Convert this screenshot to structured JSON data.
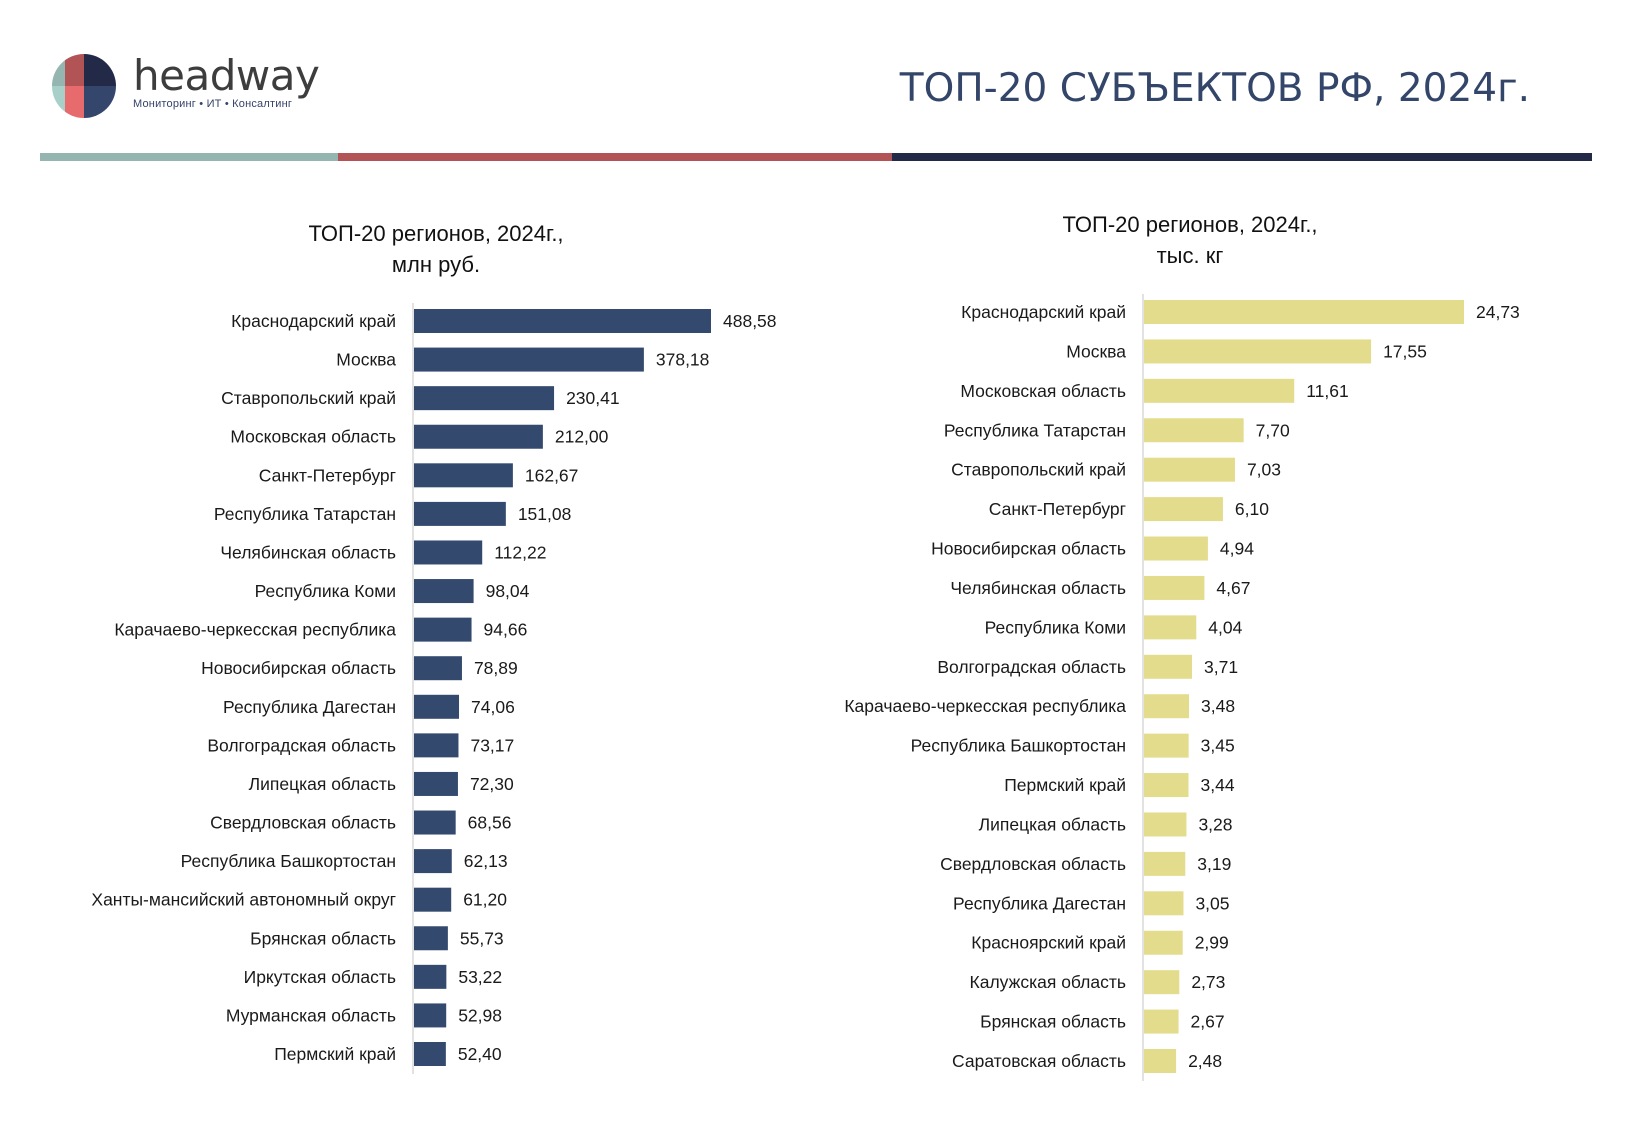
{
  "brand": {
    "name": "headway",
    "tagline": "Мониторинг • ИТ • Консалтинг",
    "logo_colors": [
      "#94b5b0",
      "#b25456",
      "#222a48",
      "#a8d0c9",
      "#e76a6d",
      "#34466c"
    ]
  },
  "page_title": "ТОП-20 СУБЪЕКТОВ РФ, 2024г.",
  "stripe_colors": [
    "#94b5b0",
    "#b25456",
    "#222a48"
  ],
  "chart_data": [
    {
      "type": "bar",
      "orientation": "horizontal",
      "title_line1": "ТОП-20 регионов, 2024г.,",
      "title_line2": "млн руб.",
      "unit": "млн руб.",
      "color": "#34496e",
      "categories": [
        "Краснодарский край",
        "Москва",
        "Ставропольский край",
        "Московская область",
        "Санкт-Петербург",
        "Республика Татарстан",
        "Челябинская область",
        "Республика Коми",
        "Карачаево-черкесская республика",
        "Новосибирская область",
        "Республика Дагестан",
        "Волгоградская область",
        "Липецкая область",
        "Свердловская область",
        "Республика Башкортостан",
        "Ханты-мансийский автономный округ",
        "Брянская область",
        "Иркутская область",
        "Мурманская область",
        "Пермский край"
      ],
      "values": [
        488.58,
        378.18,
        230.41,
        212.0,
        162.67,
        151.08,
        112.22,
        98.04,
        94.66,
        78.89,
        74.06,
        73.17,
        72.3,
        68.56,
        62.13,
        61.2,
        55.73,
        53.22,
        52.98,
        52.4
      ],
      "labels": [
        "488,58",
        "378,18",
        "230,41",
        "212,00",
        "162,67",
        "151,08",
        "112,22",
        "98,04",
        "94,66",
        "78,89",
        "74,06",
        "73,17",
        "72,30",
        "68,56",
        "62,13",
        "61,20",
        "55,73",
        "53,22",
        "52,98",
        "52,40"
      ],
      "grid": false,
      "legend": "none"
    },
    {
      "type": "bar",
      "orientation": "horizontal",
      "title_line1": "ТОП-20 регионов, 2024г.,",
      "title_line2": "тыс. кг",
      "unit": "тыс. кг",
      "color": "#e3dc8c",
      "categories": [
        "Краснодарский край",
        "Москва",
        "Московская область",
        "Республика Татарстан",
        "Ставропольский край",
        "Санкт-Петербург",
        "Новосибирская область",
        "Челябинская область",
        "Республика Коми",
        "Волгоградская область",
        "Карачаево-черкесская республика",
        "Республика Башкортостан",
        "Пермский край",
        "Липецкая область",
        "Свердловская область",
        "Республика Дагестан",
        "Красноярский край",
        "Калужская область",
        "Брянская область",
        "Саратовская область"
      ],
      "values": [
        24.73,
        17.55,
        11.61,
        7.7,
        7.03,
        6.1,
        4.94,
        4.67,
        4.04,
        3.71,
        3.48,
        3.45,
        3.44,
        3.28,
        3.19,
        3.05,
        2.99,
        2.73,
        2.67,
        2.48
      ],
      "labels": [
        "24,73",
        "17,55",
        "11,61",
        "7,70",
        "7,03",
        "6,10",
        "4,94",
        "4,67",
        "4,04",
        "3,71",
        "3,48",
        "3,45",
        "3,44",
        "3,28",
        "3,19",
        "3,05",
        "2,99",
        "2,73",
        "2,67",
        "2,48"
      ],
      "grid": false,
      "legend": "none"
    }
  ]
}
